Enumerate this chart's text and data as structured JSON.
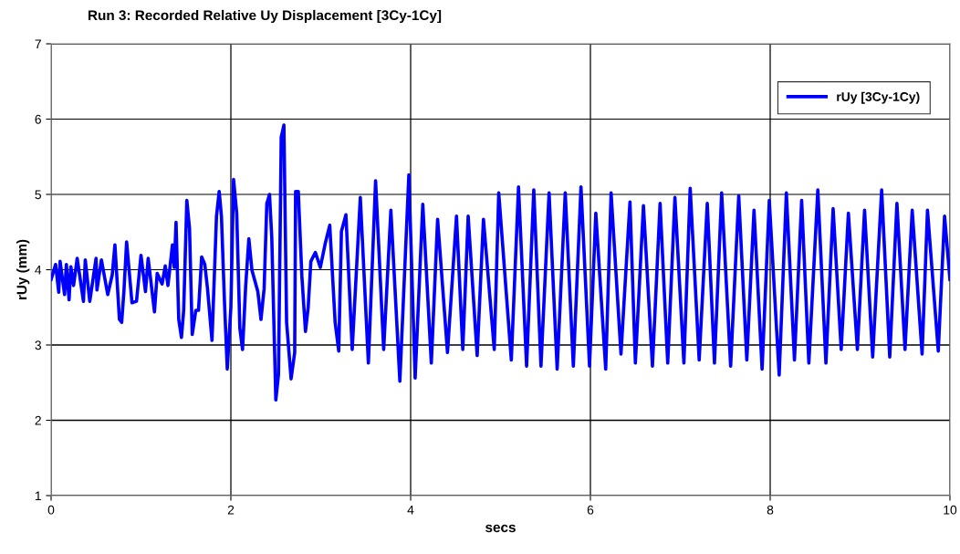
{
  "chart_data": {
    "type": "line",
    "title": "Run 3: Recorded Relative Uy Displacement [3Cy-1Cy]",
    "xlabel": "secs",
    "ylabel": "rUy (mm)",
    "xlim": [
      0,
      10
    ],
    "xticks": [
      0,
      2,
      4,
      6,
      8,
      10
    ],
    "ylim": [
      1,
      7
    ],
    "yticks": [
      1,
      2,
      3,
      4,
      5,
      6,
      7
    ],
    "grid": true,
    "legend": "top right",
    "marker": "none",
    "line_style": "solid",
    "series": [
      {
        "name": "rUy [3Cy-1Cy)",
        "color": "#0000ff",
        "x": [
          0,
          0.05,
          0.085,
          0.1,
          0.15,
          0.17,
          0.2,
          0.22,
          0.25,
          0.29,
          0.36,
          0.38,
          0.43,
          0.5,
          0.51,
          0.56,
          0.63,
          0.68,
          0.71,
          0.76,
          0.785,
          0.81,
          0.84,
          0.9,
          0.95,
          1.0,
          1.05,
          1.08,
          1.15,
          1.18,
          1.235,
          1.27,
          1.3,
          1.35,
          1.37,
          1.39,
          1.42,
          1.45,
          1.475,
          1.51,
          1.54,
          1.57,
          1.61,
          1.64,
          1.675,
          1.71,
          1.74,
          1.79,
          1.84,
          1.87,
          1.895,
          1.93,
          1.96,
          2.0,
          2.03,
          2.065,
          2.1,
          2.13,
          2.165,
          2.2,
          2.235,
          2.3,
          2.335,
          2.37,
          2.4,
          2.43,
          2.455,
          2.5,
          2.53,
          2.56,
          2.59,
          2.62,
          2.67,
          2.71,
          2.72,
          2.75,
          2.79,
          2.83,
          2.86,
          2.89,
          2.94,
          2.995,
          3.05,
          3.1,
          3.16,
          3.2,
          3.23,
          3.28,
          3.35,
          3.44,
          3.53,
          3.61,
          3.7,
          3.78,
          3.88,
          3.98,
          4.05,
          4.135,
          4.23,
          4.3,
          4.41,
          4.51,
          4.58,
          4.64,
          4.74,
          4.81,
          4.93,
          4.98,
          5.12,
          5.2,
          5.29,
          5.37,
          5.45,
          5.54,
          5.63,
          5.72,
          5.81,
          5.895,
          5.99,
          6.06,
          6.17,
          6.23,
          6.34,
          6.44,
          6.5,
          6.59,
          6.69,
          6.775,
          6.86,
          6.94,
          7.04,
          7.11,
          7.21,
          7.3,
          7.38,
          7.46,
          7.56,
          7.65,
          7.74,
          7.82,
          7.91,
          7.99,
          8.1,
          8.18,
          8.27,
          8.35,
          8.43,
          8.53,
          8.62,
          8.7,
          8.79,
          8.87,
          8.97,
          9.05,
          9.14,
          9.24,
          9.33,
          9.41,
          9.5,
          9.58,
          9.69,
          9.75,
          9.87,
          9.94,
          10.0
        ],
        "values": [
          3.87,
          4.07,
          3.7,
          4.11,
          3.67,
          4.07,
          3.6,
          4.04,
          3.79,
          4.15,
          3.58,
          4.13,
          3.58,
          4.15,
          3.73,
          4.13,
          3.67,
          3.93,
          4.33,
          3.34,
          3.3,
          3.71,
          4.37,
          3.56,
          3.58,
          4.19,
          3.71,
          4.15,
          3.44,
          3.95,
          3.81,
          4.05,
          3.79,
          4.33,
          4.03,
          4.63,
          3.34,
          3.1,
          3.46,
          4.92,
          4.55,
          3.14,
          3.46,
          3.46,
          4.17,
          4.07,
          3.75,
          3.06,
          4.71,
          5.04,
          4.71,
          3.54,
          2.68,
          3.5,
          5.2,
          4.75,
          3.22,
          2.94,
          3.79,
          4.41,
          3.99,
          3.71,
          3.34,
          3.75,
          4.88,
          5.0,
          4.43,
          2.27,
          2.61,
          5.76,
          5.92,
          3.3,
          2.55,
          2.9,
          5.04,
          5.04,
          3.91,
          3.18,
          3.5,
          4.11,
          4.23,
          4.03,
          4.35,
          4.59,
          3.3,
          2.92,
          4.51,
          4.73,
          2.94,
          4.96,
          2.76,
          5.18,
          2.94,
          4.79,
          2.52,
          5.26,
          2.56,
          4.87,
          2.76,
          4.67,
          2.9,
          4.71,
          2.94,
          4.71,
          2.86,
          4.67,
          2.94,
          5.02,
          2.8,
          5.1,
          2.72,
          5.06,
          2.72,
          5.02,
          2.68,
          5.02,
          2.72,
          5.1,
          2.72,
          4.75,
          2.68,
          5.02,
          2.88,
          4.9,
          2.76,
          4.85,
          2.72,
          4.88,
          2.76,
          4.96,
          2.76,
          5.08,
          2.8,
          4.88,
          2.76,
          5.02,
          2.72,
          4.98,
          2.8,
          4.79,
          2.68,
          4.92,
          2.6,
          5.02,
          2.8,
          4.92,
          2.76,
          5.06,
          2.76,
          4.81,
          2.94,
          4.75,
          2.94,
          4.79,
          2.84,
          5.06,
          2.84,
          4.88,
          2.94,
          4.79,
          2.88,
          4.79,
          2.92,
          4.71,
          3.87
        ]
      }
    ]
  }
}
